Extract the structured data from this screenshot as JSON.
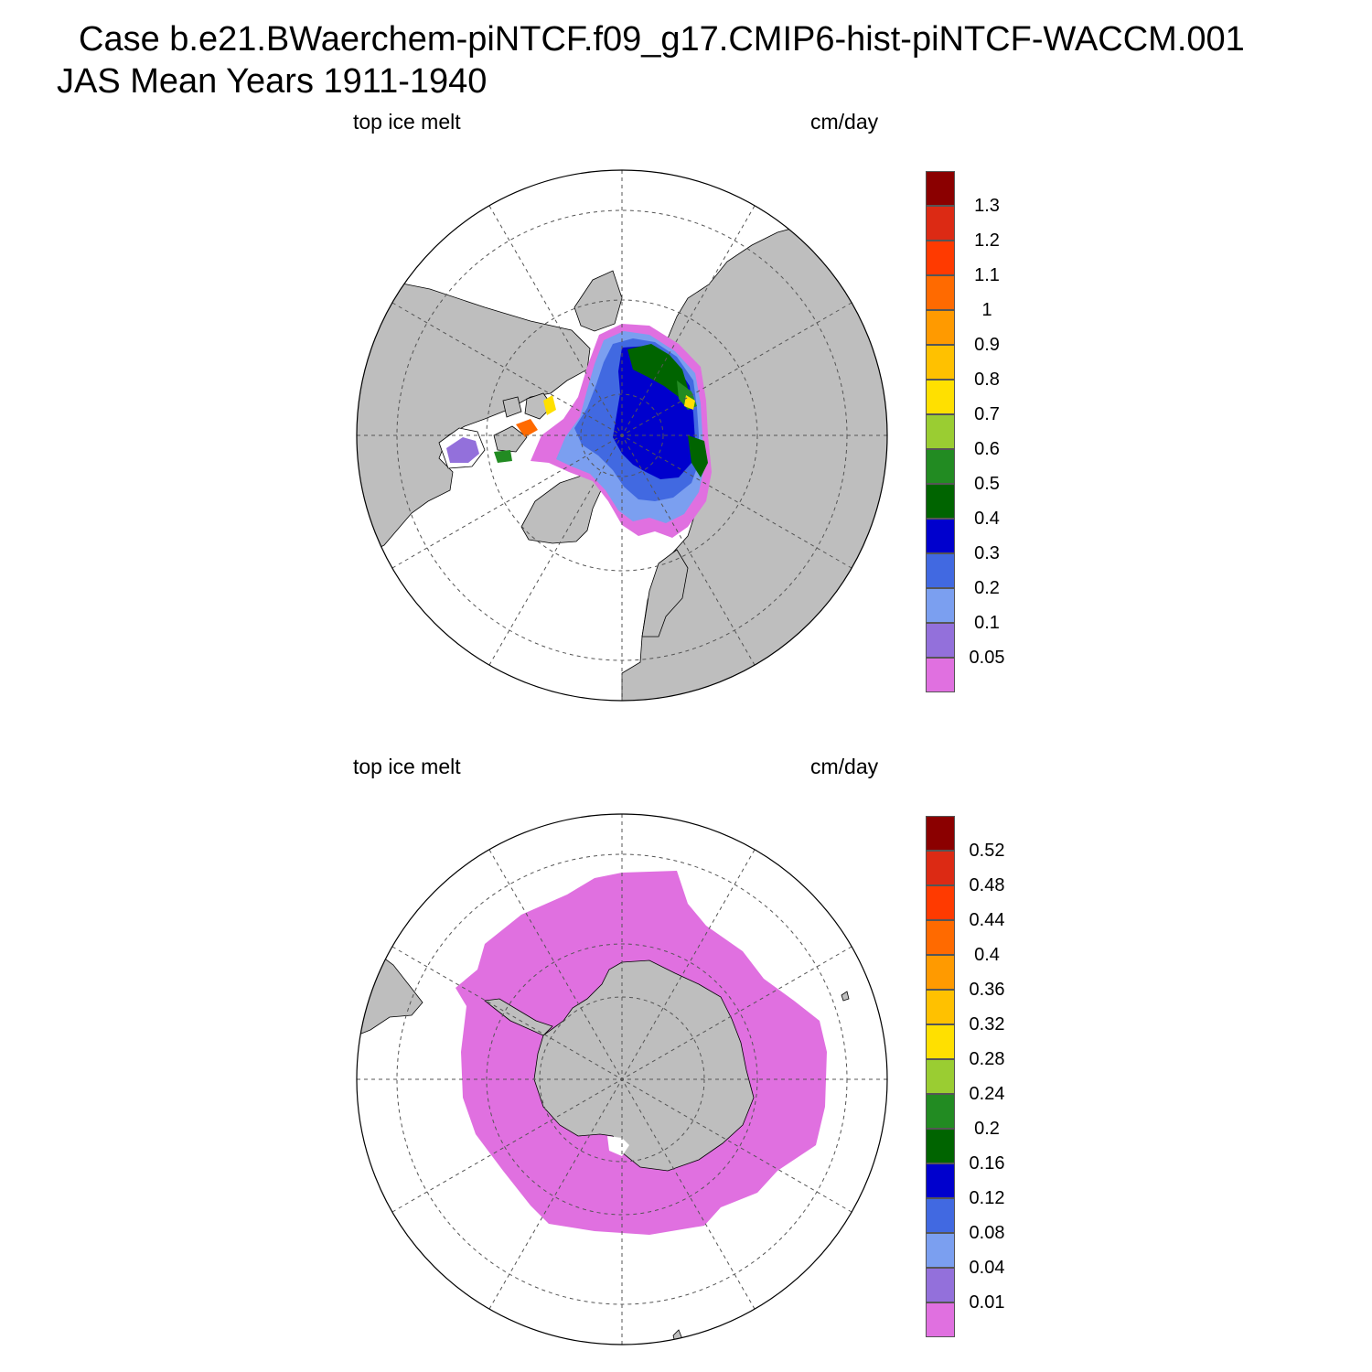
{
  "title": {
    "case": "Case b.e21.BWaerchem-piNTCF.f09_g17.CMIP6-hist-piNTCF-WACCM.001",
    "mean": "JAS Mean   Years 1911-1940"
  },
  "panels": [
    {
      "hemisphere": "north",
      "left_label": "top ice melt",
      "right_label": "cm/day",
      "levels": [
        "0.05",
        "0.1",
        "0.2",
        "0.3",
        "0.4",
        "0.5",
        "0.6",
        "0.7",
        "0.8",
        "0.9",
        "1",
        "1.1",
        "1.2",
        "1.3"
      ]
    },
    {
      "hemisphere": "south",
      "left_label": "top ice melt",
      "right_label": "cm/day",
      "levels": [
        "0.01",
        "0.04",
        "0.08",
        "0.12",
        "0.16",
        "0.2",
        "0.24",
        "0.28",
        "0.32",
        "0.36",
        "0.4",
        "0.44",
        "0.48",
        "0.52"
      ]
    }
  ],
  "colors": {
    "land": "#bebebe",
    "ocean": "#ffffff",
    "scale": [
      "#e070e0",
      "#9370db",
      "#7b9ff0",
      "#4169e1",
      "#0000cd",
      "#006400",
      "#228b22",
      "#9acd32",
      "#ffe000",
      "#ffc100",
      "#ff9a00",
      "#ff6a00",
      "#ff3a00",
      "#dc2a14",
      "#8b0000"
    ]
  }
}
